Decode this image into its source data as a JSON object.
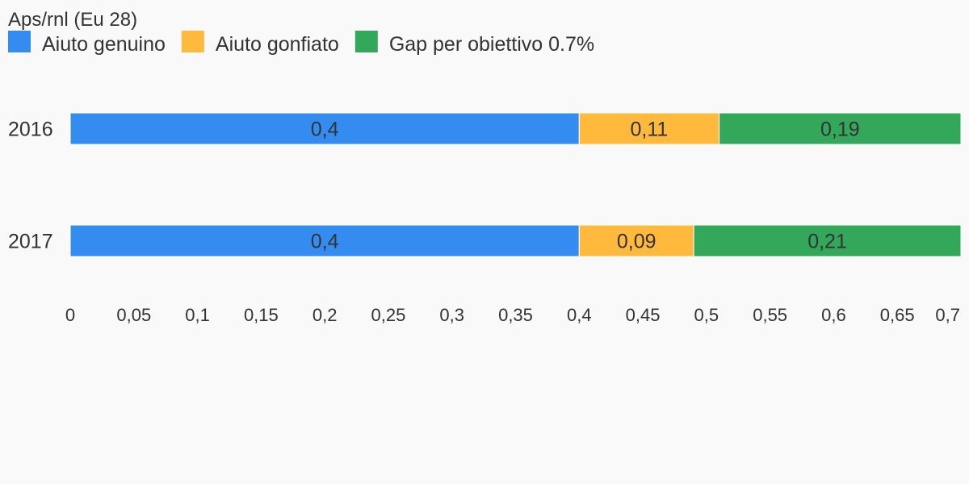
{
  "chart_data": {
    "type": "bar",
    "orientation": "horizontal",
    "stacked": true,
    "title": "Aps/rnl (Eu 28)",
    "categories": [
      "2016",
      "2017"
    ],
    "series": [
      {
        "name": "Aiuto genuino",
        "color": "#348cf0",
        "values": [
          0.4,
          0.4
        ],
        "labels": [
          "0,4",
          "0,4"
        ]
      },
      {
        "name": "Aiuto gonfiato",
        "color": "#ffb93c",
        "values": [
          0.11,
          0.09
        ],
        "labels": [
          "0,11",
          "0,09"
        ]
      },
      {
        "name": "Gap per obiettivo 0.7%",
        "color": "#34a85a",
        "values": [
          0.19,
          0.21
        ],
        "labels": [
          "0,19",
          "0,21"
        ]
      }
    ],
    "xlim": [
      0,
      0.7
    ],
    "x_ticks": [
      0,
      0.05,
      0.1,
      0.15,
      0.2,
      0.25,
      0.3,
      0.35,
      0.4,
      0.45,
      0.5,
      0.55,
      0.6,
      0.65,
      0.7
    ],
    "x_tick_labels": [
      "0",
      "0,05",
      "0,1",
      "0,15",
      "0,2",
      "0,25",
      "0,3",
      "0,35",
      "0,4",
      "0,45",
      "0,5",
      "0,55",
      "0,6",
      "0,65",
      "0,7"
    ],
    "grid": false,
    "legend_position": "top-left"
  }
}
